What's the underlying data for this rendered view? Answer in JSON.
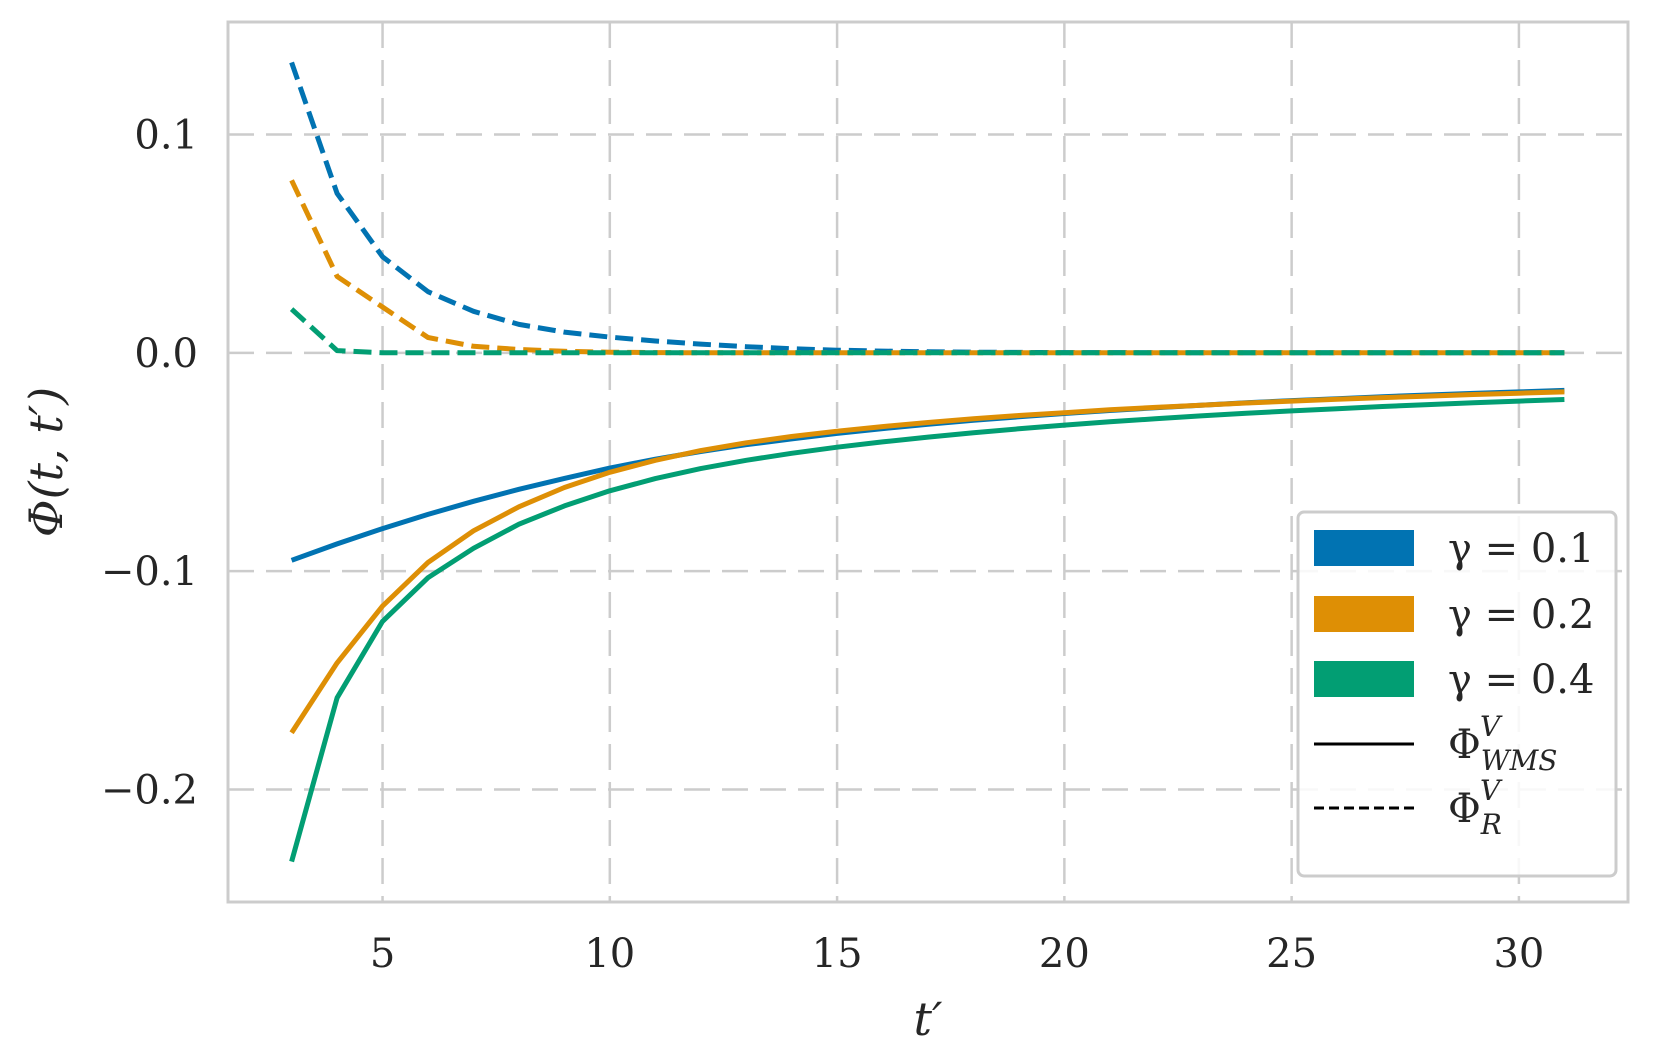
{
  "chart_data": {
    "type": "line",
    "xlabel": "t′",
    "ylabel": "Φ(t, t′)",
    "xlim": [
      1.6,
      32.4
    ],
    "ylim": [
      -0.2515,
      0.1515
    ],
    "xticks": [
      5,
      10,
      15,
      20,
      25,
      30
    ],
    "yticks": [
      -0.2,
      -0.1,
      0.0,
      0.1
    ],
    "xtick_labels": [
      "5",
      "10",
      "15",
      "20",
      "25",
      "30"
    ],
    "ytick_labels": [
      "−0.2",
      "−0.1",
      "0.0",
      "0.1"
    ],
    "grid": true,
    "legend_position": "lower-right",
    "x": [
      3,
      4,
      5,
      6,
      7,
      8,
      9,
      10,
      11,
      12,
      13,
      14,
      15,
      16,
      17,
      18,
      19,
      20,
      21,
      22,
      23,
      24,
      25,
      26,
      27,
      28,
      29,
      30,
      31
    ],
    "series": [
      {
        "name": "γ = 0.1",
        "style": "solid",
        "color": "#0173b2",
        "values": [
          -0.095,
          -0.0875,
          -0.0805,
          -0.074,
          -0.068,
          -0.0625,
          -0.0575,
          -0.0528,
          -0.0487,
          -0.0452,
          -0.0421,
          -0.0394,
          -0.0369,
          -0.0347,
          -0.0327,
          -0.0309,
          -0.0293,
          -0.0278,
          -0.0264,
          -0.0252,
          -0.024,
          -0.0229,
          -0.0219,
          -0.021,
          -0.0201,
          -0.0193,
          -0.0186,
          -0.0179,
          -0.0172
        ]
      },
      {
        "name": "γ = 0.2",
        "style": "solid",
        "color": "#de8f05",
        "values": [
          -0.174,
          -0.142,
          -0.116,
          -0.096,
          -0.0815,
          -0.0705,
          -0.0617,
          -0.0547,
          -0.0492,
          -0.0448,
          -0.0412,
          -0.0383,
          -0.0359,
          -0.0338,
          -0.0319,
          -0.0302,
          -0.0287,
          -0.0274,
          -0.0261,
          -0.025,
          -0.024,
          -0.023,
          -0.0221,
          -0.0213,
          -0.0205,
          -0.0198,
          -0.0191,
          -0.0185,
          -0.0179
        ]
      },
      {
        "name": "γ = 0.4",
        "style": "solid",
        "color": "#029e73",
        "values": [
          -0.233,
          -0.158,
          -0.123,
          -0.103,
          -0.0895,
          -0.0785,
          -0.0701,
          -0.0632,
          -0.0576,
          -0.053,
          -0.0492,
          -0.046,
          -0.0432,
          -0.0408,
          -0.0386,
          -0.0366,
          -0.0348,
          -0.0331,
          -0.0316,
          -0.0302,
          -0.0289,
          -0.0277,
          -0.0266,
          -0.0256,
          -0.0246,
          -0.0237,
          -0.0229,
          -0.0221,
          -0.0214
        ]
      },
      {
        "name": "γ = 0.1",
        "style": "dashed",
        "color": "#0173b2",
        "values": [
          0.133,
          0.073,
          0.044,
          0.028,
          0.019,
          0.013,
          0.0095,
          0.0072,
          0.0054,
          0.004,
          0.0028,
          0.0019,
          0.0012,
          0.0008,
          0.0005,
          0.0003,
          0.0002,
          0.0001,
          0.0001,
          0.0,
          0.0,
          0.0,
          0.0,
          0.0,
          0.0,
          0.0,
          0.0,
          0.0,
          0.0
        ]
      },
      {
        "name": "γ = 0.2",
        "style": "dashed",
        "color": "#de8f05",
        "values": [
          0.079,
          0.035,
          0.021,
          0.007,
          0.003,
          0.0015,
          0.0007,
          0.0003,
          0.0001,
          0.0,
          0.0,
          0.0,
          0.0,
          0.0,
          0.0,
          0.0,
          0.0,
          0.0,
          0.0,
          0.0,
          0.0,
          0.0,
          0.0,
          0.0,
          0.0,
          0.0,
          0.0,
          0.0,
          0.0
        ]
      },
      {
        "name": "γ = 0.4",
        "style": "dashed",
        "color": "#029e73",
        "values": [
          0.02,
          0.001,
          0.0,
          0.0,
          0.0,
          0.0,
          0.0,
          0.0,
          0.0,
          0.0,
          0.0,
          0.0,
          0.0,
          0.0,
          0.0,
          0.0,
          0.0,
          0.0,
          0.0,
          0.0,
          0.0,
          0.0,
          0.0,
          0.0,
          0.0,
          0.0,
          0.0,
          0.0,
          0.0
        ]
      }
    ],
    "legend": [
      {
        "kind": "patch",
        "color": "#0173b2",
        "label": "γ = 0.1"
      },
      {
        "kind": "patch",
        "color": "#de8f05",
        "label": "γ = 0.2"
      },
      {
        "kind": "patch",
        "color": "#029e73",
        "label": "γ = 0.4"
      },
      {
        "kind": "solid",
        "color": "#000000",
        "label": "Φ",
        "sup": "V",
        "sub": "WMS"
      },
      {
        "kind": "dashed",
        "color": "#000000",
        "label": "Φ",
        "sup": "V",
        "sub": "R"
      }
    ]
  }
}
